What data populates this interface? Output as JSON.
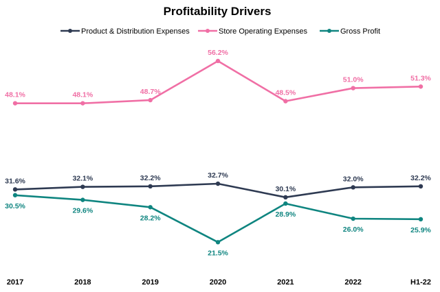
{
  "chart_data": {
    "type": "line",
    "title": "Profitability Drivers",
    "xlabel": "",
    "ylabel": "",
    "ylim": [
      18,
      60
    ],
    "grid": false,
    "legend_position": "top",
    "categories": [
      "2017",
      "2018",
      "2019",
      "2020",
      "2021",
      "2022",
      "H1-22"
    ],
    "series": [
      {
        "name": "Product & Distribution Expenses",
        "color": "#2e3a52",
        "label_position": "above",
        "values": [
          31.6,
          32.1,
          32.2,
          32.7,
          30.1,
          32.0,
          32.2
        ],
        "labels": [
          "31.6%",
          "32.1%",
          "32.2%",
          "32.7%",
          "30.1%",
          "32.0%",
          "32.2%"
        ]
      },
      {
        "name": "Store Operating Expenses",
        "color": "#f06fa5",
        "label_position": "above",
        "values": [
          48.1,
          48.1,
          48.7,
          56.2,
          48.5,
          51.0,
          51.3
        ],
        "labels": [
          "48.1%",
          "48.1%",
          "48.7%",
          "56.2%",
          "48.5%",
          "51.0%",
          "51.3%"
        ]
      },
      {
        "name": "Gross Profit",
        "color": "#0f8580",
        "label_position": "below",
        "values": [
          30.5,
          29.6,
          28.2,
          21.5,
          28.9,
          26.0,
          25.9
        ],
        "labels": [
          "30.5%",
          "29.6%",
          "28.2%",
          "21.5%",
          "28.9%",
          "26.0%",
          "25.9%"
        ]
      }
    ]
  }
}
